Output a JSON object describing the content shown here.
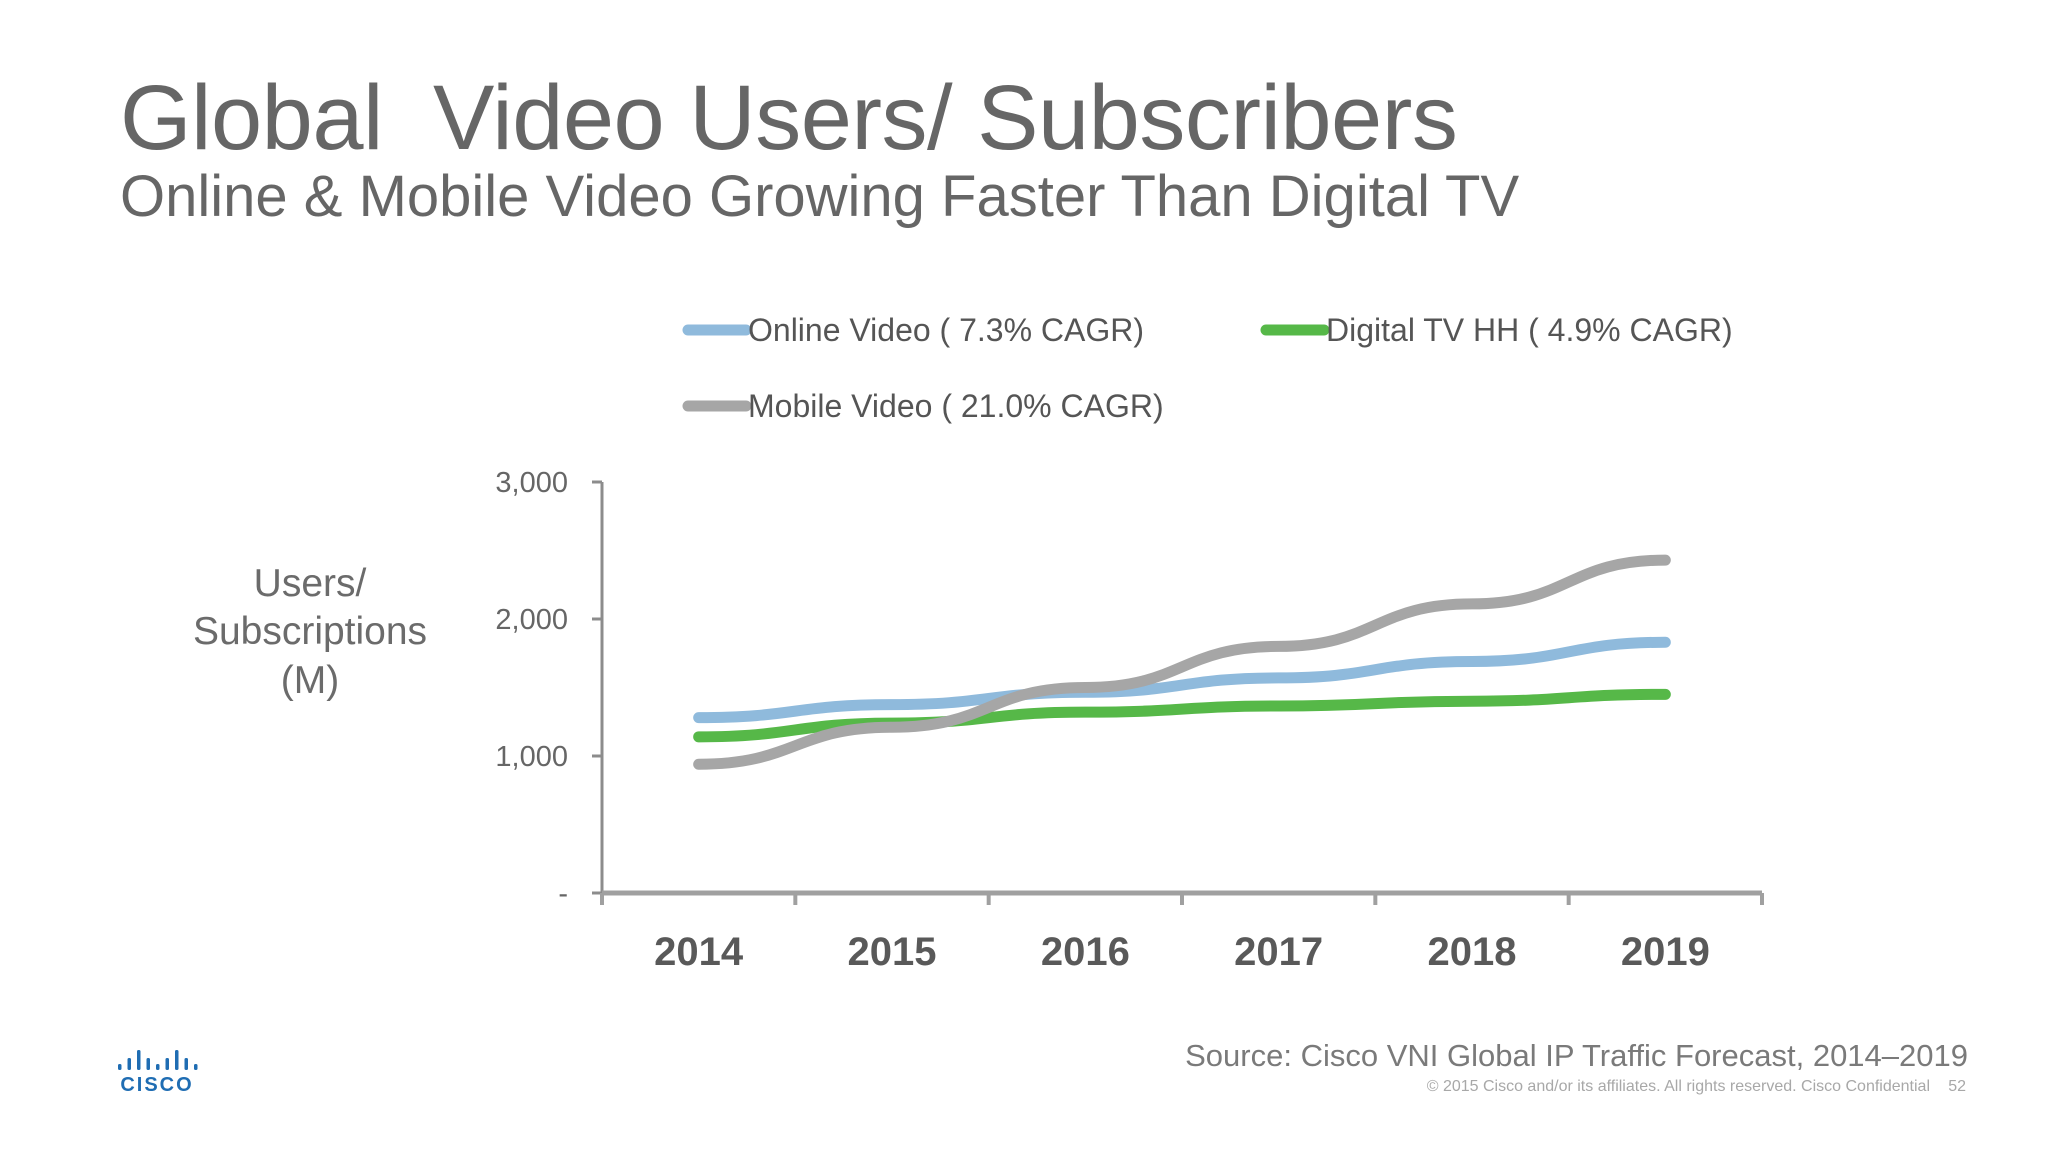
{
  "slide": {
    "title": "Global  Video Users/ Subscribers",
    "subtitle": "Online & Mobile Video Growing Faster Than Digital TV",
    "source": "Source: Cisco VNI Global IP Traffic Forecast, 2014–2019",
    "copyright": "© 2015  Cisco and/or its affiliates. All rights reserved.   Cisco Confidential",
    "page_number": "52",
    "logo_text": "CISCO",
    "logo_color": "#1f6db3"
  },
  "chart_data": {
    "type": "line",
    "title": "",
    "xlabel": "",
    "ylabel": "Users/ Subscriptions (M)",
    "ylabel_lines": [
      "Users/",
      "Subscriptions",
      "(M)"
    ],
    "x": [
      "2014",
      "2015",
      "2016",
      "2017",
      "2018",
      "2019"
    ],
    "ylim": [
      0,
      3000
    ],
    "yticks": [
      0,
      1000,
      2000,
      3000
    ],
    "ytick_labels": [
      "-",
      "1,000",
      "2,000",
      "3,000"
    ],
    "grid": false,
    "legend_position": "top",
    "series": [
      {
        "name": "Online Video ( 7.3% CAGR)",
        "color": "#8fbadc",
        "values": [
          1280,
          1375,
          1465,
          1570,
          1690,
          1830
        ]
      },
      {
        "name": "Digital TV HH ( 4.9% CAGR)",
        "color": "#56b848",
        "values": [
          1140,
          1240,
          1320,
          1365,
          1400,
          1450
        ]
      },
      {
        "name": "Mobile Video ( 21.0% CAGR)",
        "color": "#a6a6a6",
        "values": [
          940,
          1210,
          1500,
          1800,
          2110,
          2430
        ]
      }
    ]
  }
}
